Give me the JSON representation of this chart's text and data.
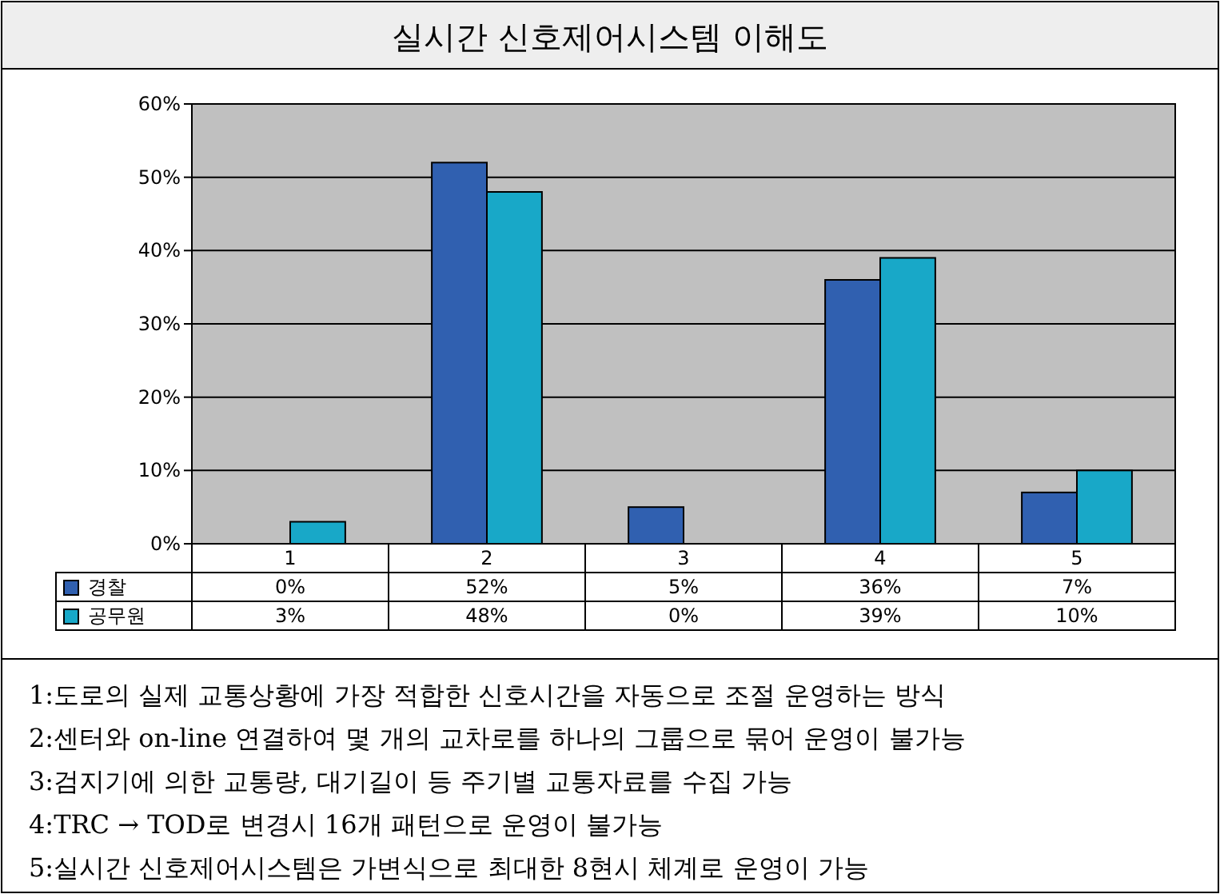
{
  "chart_data": {
    "type": "bar",
    "title": "실시간 신호제어시스템 이해도",
    "categories": [
      "1",
      "2",
      "3",
      "4",
      "5"
    ],
    "series": [
      {
        "name": "경찰",
        "color": "#3060b0",
        "values": [
          0,
          52,
          5,
          36,
          7
        ],
        "value_labels": [
          "0%",
          "52%",
          "5%",
          "36%",
          "7%"
        ]
      },
      {
        "name": "공무원",
        "color": "#18a8c8",
        "values": [
          3,
          48,
          0,
          39,
          10
        ],
        "value_labels": [
          "3%",
          "48%",
          "0%",
          "39%",
          "10%"
        ]
      }
    ],
    "ylim": [
      0,
      60
    ],
    "yticks": [
      {
        "value": 0,
        "label": "0%"
      },
      {
        "value": 10,
        "label": "10%"
      },
      {
        "value": 20,
        "label": "20%"
      },
      {
        "value": 30,
        "label": "30%"
      },
      {
        "value": 40,
        "label": "40%"
      },
      {
        "value": 50,
        "label": "50%"
      },
      {
        "value": 60,
        "label": "60%"
      }
    ],
    "grid": "y",
    "legend": "bottom left",
    "annotations": [
      "1:도로의 실제 교통상황에 가장 적합한 신호시간을 자동으로 조절 운영하는 방식",
      "2:센터와 on-line 연결하여 몇 개의 교차로를 하나의 그룹으로 묶어 운영이 불가능",
      "3:검지기에 의한 교통량, 대기길이 등 주기별 교통자료를 수집 가능",
      "4:TRC → TOD로 변경시 16개 패턴으로 운영이 불가능",
      "5:실시간 신호제어시스템은 가변식으로 최대한 8현시 체계로 운영이 가능"
    ]
  }
}
